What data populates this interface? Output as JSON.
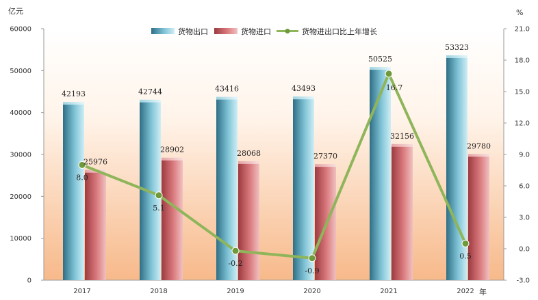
{
  "chart_data": {
    "type": "bar",
    "categories": [
      "2017",
      "2018",
      "2019",
      "2020",
      "2021",
      "2022"
    ],
    "left_unit": "亿元",
    "right_unit": "%",
    "x_unit": "年",
    "ylim_left": [
      0,
      60000
    ],
    "yticks_left": [
      "0",
      "10000",
      "20000",
      "30000",
      "40000",
      "50000",
      "60000"
    ],
    "ylim_right": [
      -3.0,
      21.0
    ],
    "yticks_right": [
      "-3.0",
      "0.0",
      "3.0",
      "6.0",
      "9.0",
      "12.0",
      "15.0",
      "18.0",
      "21.0"
    ],
    "legend_position": "top",
    "series": [
      {
        "name": "货物出口",
        "type": "bar",
        "axis": "left",
        "color": "#4e98b0",
        "values": [
          42193,
          42744,
          43416,
          43493,
          50525,
          53323
        ],
        "labels": [
          "42193",
          "42744",
          "43416",
          "43493",
          "50525",
          "53323"
        ]
      },
      {
        "name": "货物进口",
        "type": "bar",
        "axis": "left",
        "color": "#b94f55",
        "values": [
          25976,
          28902,
          28068,
          27370,
          32156,
          29780
        ],
        "labels": [
          "25976",
          "28902",
          "28068",
          "27370",
          "32156",
          "29780"
        ]
      },
      {
        "name": "货物进出口比上年增长",
        "type": "line",
        "axis": "right",
        "color": "#8fb55a",
        "values": [
          8.0,
          5.1,
          -0.2,
          -0.9,
          16.7,
          0.5
        ],
        "labels": [
          "8.0",
          "5.1",
          "-0.2",
          "-0.9",
          "16.7",
          "0.5"
        ]
      }
    ]
  }
}
